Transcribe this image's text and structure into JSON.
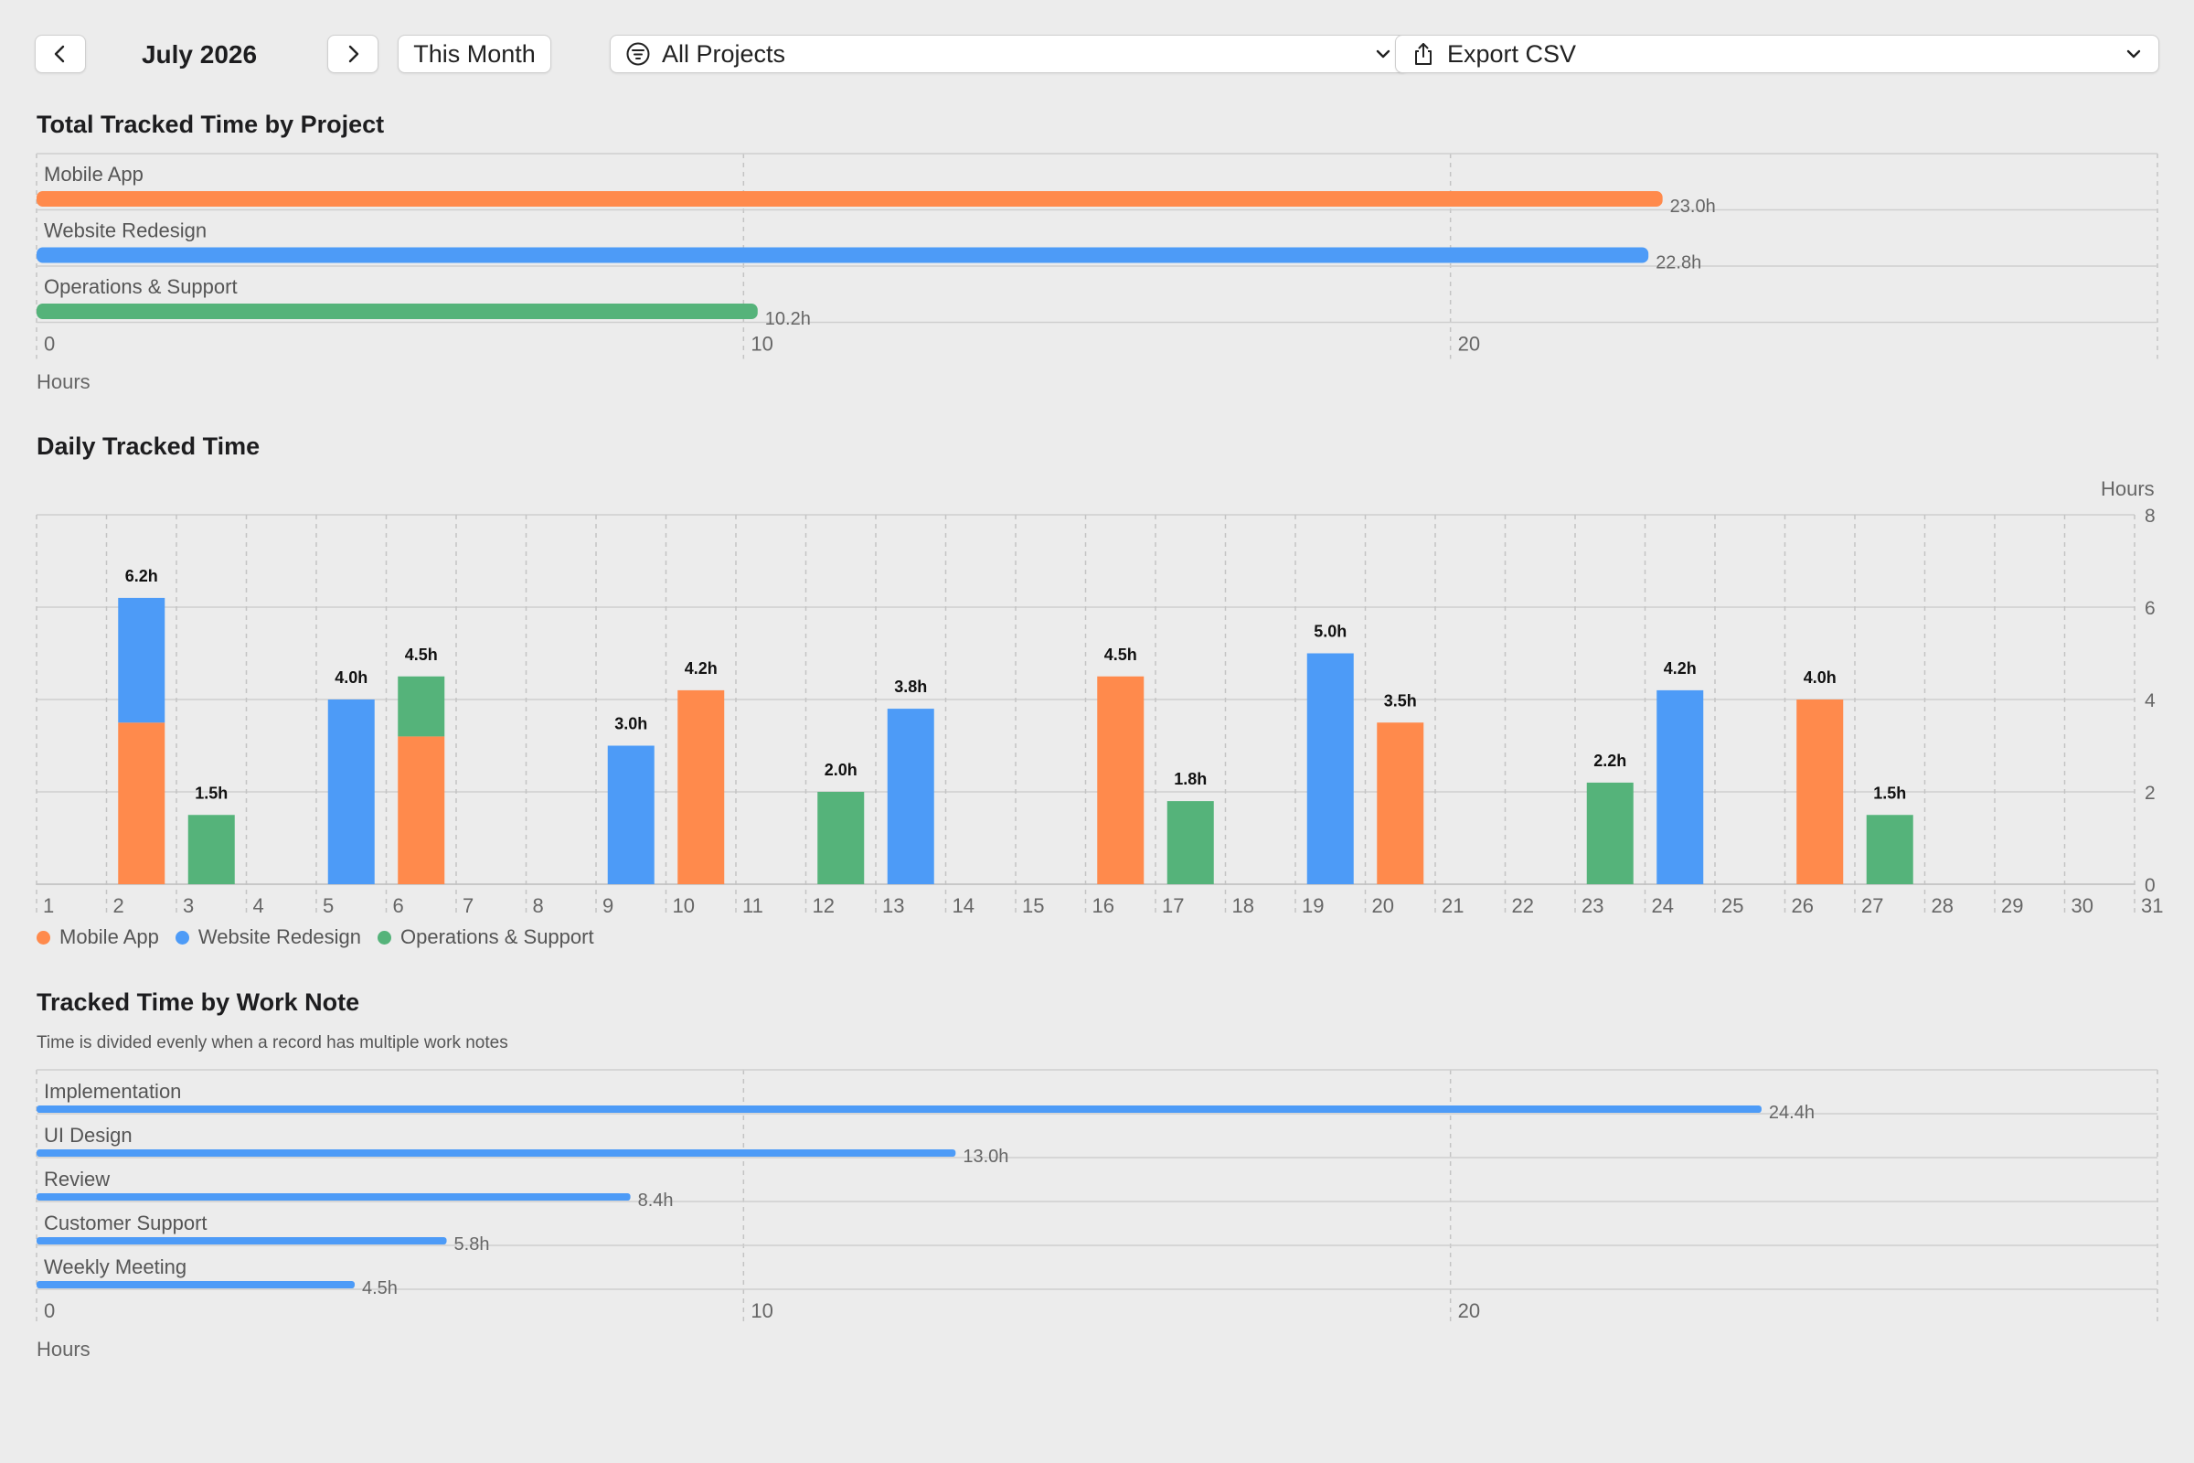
{
  "toolbar": {
    "month": "July 2026",
    "this_month_label": "This Month",
    "project_filter": "All Projects",
    "export_label": "Export CSV"
  },
  "icons": {
    "prev": "chevron-left-icon",
    "next": "chevron-right-icon",
    "filter": "filter-circle-icon",
    "export": "share-export-icon",
    "dropdown": "chevron-down-icon"
  },
  "colors": {
    "Mobile App": "#FF8A4C",
    "Website Redesign": "#4D9BF7",
    "Operations & Support": "#55B37A",
    "work_note_bar": "#4D9BF7"
  },
  "sections": {
    "project_title": "Total Tracked Time by Project",
    "daily_title": "Daily Tracked Time",
    "notes_title": "Tracked Time by Work Note",
    "notes_subtitle": "Time is divided evenly when a record has multiple work notes"
  },
  "chart_data": [
    {
      "type": "bar",
      "orientation": "horizontal",
      "title": "Total Tracked Time by Project",
      "categories": [
        "Mobile App",
        "Website Redesign",
        "Operations & Support"
      ],
      "values": [
        23.0,
        22.8,
        10.2
      ],
      "value_labels": [
        "23.0h",
        "22.8h",
        "10.2h"
      ],
      "xlabel": "Hours",
      "xlim": [
        0,
        30
      ],
      "ticks": [
        0,
        10,
        20
      ],
      "grid": true
    },
    {
      "type": "bar",
      "stacked": true,
      "title": "Daily Tracked Time",
      "ylabel": "Hours",
      "ylim": [
        0,
        8
      ],
      "yticks": [
        0,
        2,
        4,
        6,
        8
      ],
      "categories": [
        "1",
        "2",
        "3",
        "4",
        "5",
        "6",
        "7",
        "8",
        "9",
        "10",
        "11",
        "12",
        "13",
        "14",
        "15",
        "16",
        "17",
        "18",
        "19",
        "20",
        "21",
        "22",
        "23",
        "24",
        "25",
        "26",
        "27",
        "28",
        "29",
        "30",
        "31"
      ],
      "series": [
        {
          "name": "Mobile App",
          "values": [
            0,
            3.5,
            0,
            0,
            0,
            3.2,
            0,
            0,
            0,
            4.2,
            0,
            0,
            0,
            0,
            0,
            4.5,
            0,
            0,
            0,
            3.5,
            0,
            0,
            0,
            0,
            0,
            4.0,
            0,
            0,
            0,
            0,
            0
          ]
        },
        {
          "name": "Website Redesign",
          "values": [
            0,
            2.7,
            0,
            0,
            4.0,
            0,
            0,
            0,
            3.0,
            0,
            0,
            0,
            3.8,
            0,
            0,
            0,
            0,
            0,
            5.0,
            0,
            0,
            0,
            0,
            4.2,
            0,
            0,
            0,
            0,
            0,
            0,
            0
          ]
        },
        {
          "name": "Operations & Support",
          "values": [
            0,
            0,
            1.5,
            0,
            0,
            1.3,
            0,
            0,
            0,
            0,
            0,
            2.0,
            0,
            0,
            0,
            0,
            1.8,
            0,
            0,
            0,
            0,
            0,
            2.2,
            0,
            0,
            0,
            1.5,
            0,
            0,
            0,
            0
          ]
        }
      ],
      "total_labels": [
        "",
        "6.2h",
        "1.5h",
        "",
        "4.0h",
        "4.5h",
        "",
        "",
        "3.0h",
        "4.2h",
        "",
        "2.0h",
        "3.8h",
        "",
        "",
        "4.5h",
        "1.8h",
        "",
        "5.0h",
        "3.5h",
        "",
        "",
        "2.2h",
        "4.2h",
        "",
        "4.0h",
        "1.5h",
        "",
        "",
        "",
        ""
      ],
      "legend": "bottom-left",
      "grid": true
    },
    {
      "type": "bar",
      "orientation": "horizontal",
      "title": "Tracked Time by Work Note",
      "categories": [
        "Implementation",
        "UI Design",
        "Review",
        "Customer Support",
        "Weekly Meeting"
      ],
      "values": [
        24.4,
        13.0,
        8.4,
        5.8,
        4.5
      ],
      "value_labels": [
        "24.4h",
        "13.0h",
        "8.4h",
        "5.8h",
        "4.5h"
      ],
      "xlabel": "Hours",
      "xlim": [
        0,
        30
      ],
      "ticks": [
        0,
        10,
        20
      ],
      "grid": true
    }
  ]
}
